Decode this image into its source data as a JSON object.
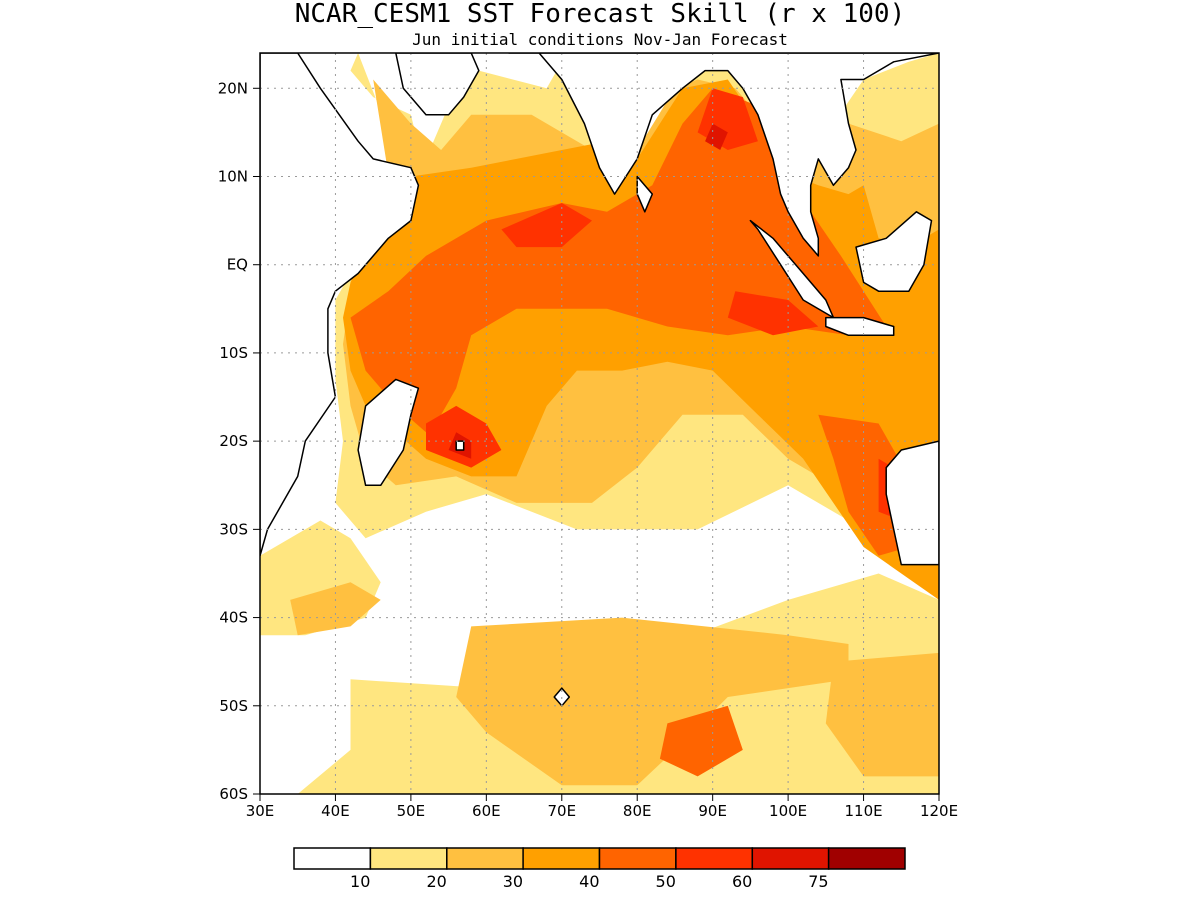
{
  "title": "NCAR_CESM1 SST Forecast Skill (r x 100)",
  "subtitle": "Jun initial conditions  Nov-Jan Forecast",
  "map": {
    "lon_range": [
      30,
      120
    ],
    "lat_range": [
      -60,
      24
    ],
    "x_ticks": [
      {
        "lon": 30,
        "label": "30E"
      },
      {
        "lon": 40,
        "label": "40E"
      },
      {
        "lon": 50,
        "label": "50E"
      },
      {
        "lon": 60,
        "label": "60E"
      },
      {
        "lon": 70,
        "label": "70E"
      },
      {
        "lon": 80,
        "label": "80E"
      },
      {
        "lon": 90,
        "label": "90E"
      },
      {
        "lon": 100,
        "label": "100E"
      },
      {
        "lon": 110,
        "label": "110E"
      },
      {
        "lon": 120,
        "label": "120E"
      }
    ],
    "y_ticks": [
      {
        "lat": 20,
        "label": "20N"
      },
      {
        "lat": 10,
        "label": "10N"
      },
      {
        "lat": 0,
        "label": "EQ"
      },
      {
        "lat": -10,
        "label": "10S"
      },
      {
        "lat": -20,
        "label": "20S"
      },
      {
        "lat": -30,
        "label": "30S"
      },
      {
        "lat": -40,
        "label": "40S"
      },
      {
        "lat": -50,
        "label": "50S"
      },
      {
        "lat": -60,
        "label": "60S"
      }
    ],
    "grid": true
  },
  "colorbar": {
    "colors": [
      "#ffffff",
      "#ffe680",
      "#ffc040",
      "#ffa000",
      "#ff6400",
      "#ff3200",
      "#e01400",
      "#a00000"
    ],
    "labels": [
      "10",
      "20",
      "30",
      "40",
      "50",
      "60",
      "75"
    ]
  },
  "regions": [
    {
      "level": 1,
      "pts": [
        [
          30,
          -33
        ],
        [
          38,
          -29
        ],
        [
          42,
          -31
        ],
        [
          46,
          -36
        ],
        [
          44,
          -40
        ],
        [
          36,
          -42
        ],
        [
          30,
          -42
        ]
      ]
    },
    {
      "level": 1,
      "pts": [
        [
          42,
          -47
        ],
        [
          60,
          -48
        ],
        [
          78,
          -45
        ],
        [
          100,
          -38
        ],
        [
          112,
          -35
        ],
        [
          120,
          -38
        ],
        [
          120,
          -60
        ],
        [
          35,
          -60
        ],
        [
          42,
          -55
        ]
      ]
    },
    {
      "level": 1,
      "pts": [
        [
          43,
          24
        ],
        [
          48,
          13
        ],
        [
          52,
          12
        ],
        [
          56,
          20
        ],
        [
          59,
          22
        ],
        [
          68,
          20
        ],
        [
          70,
          23
        ],
        [
          82,
          12
        ],
        [
          85,
          21
        ],
        [
          92,
          23
        ],
        [
          95,
          19
        ],
        [
          100,
          13
        ],
        [
          106,
          16
        ],
        [
          110,
          21
        ],
        [
          116,
          23
        ],
        [
          120,
          24
        ],
        [
          120,
          -33
        ],
        [
          108,
          -29
        ],
        [
          100,
          -25
        ],
        [
          88,
          -30
        ],
        [
          72,
          -30
        ],
        [
          60,
          -26
        ],
        [
          52,
          -28
        ],
        [
          44,
          -31
        ],
        [
          40,
          -27
        ],
        [
          41,
          -20
        ],
        [
          40,
          -13
        ],
        [
          40,
          -4
        ],
        [
          46,
          5
        ],
        [
          50,
          10
        ],
        [
          52,
          10
        ],
        [
          50,
          17
        ],
        [
          45,
          19
        ],
        [
          42,
          22
        ]
      ]
    },
    {
      "level": 2,
      "pts": [
        [
          34,
          -38
        ],
        [
          42,
          -36
        ],
        [
          46,
          -38
        ],
        [
          42,
          -41
        ],
        [
          35,
          -42
        ]
      ]
    },
    {
      "level": 2,
      "pts": [
        [
          58,
          -41
        ],
        [
          78,
          -40
        ],
        [
          100,
          -42
        ],
        [
          108,
          -43
        ],
        [
          108,
          -47
        ],
        [
          92,
          -49
        ],
        [
          85,
          -55
        ],
        [
          80,
          -59
        ],
        [
          70,
          -59
        ],
        [
          60,
          -53
        ],
        [
          56,
          -49
        ]
      ]
    },
    {
      "level": 2,
      "pts": [
        [
          106,
          -45
        ],
        [
          120,
          -44
        ],
        [
          120,
          -58
        ],
        [
          110,
          -58
        ],
        [
          105,
          -52
        ]
      ]
    },
    {
      "level": 2,
      "pts": [
        [
          45,
          21
        ],
        [
          50,
          16
        ],
        [
          54,
          13
        ],
        [
          58,
          17
        ],
        [
          66,
          17
        ],
        [
          74,
          13
        ],
        [
          80,
          13
        ],
        [
          85,
          20
        ],
        [
          88,
          21
        ],
        [
          93,
          20
        ],
        [
          97,
          16
        ],
        [
          100,
          12
        ],
        [
          106,
          12
        ],
        [
          108,
          16
        ],
        [
          115,
          14
        ],
        [
          120,
          16
        ],
        [
          120,
          -36
        ],
        [
          111,
          -31
        ],
        [
          107,
          -27
        ],
        [
          104,
          -24
        ],
        [
          100,
          -22
        ],
        [
          94,
          -17
        ],
        [
          86,
          -17
        ],
        [
          80,
          -23
        ],
        [
          74,
          -27
        ],
        [
          64,
          -27
        ],
        [
          56,
          -24
        ],
        [
          48,
          -25
        ],
        [
          44,
          -22
        ],
        [
          42,
          -16
        ],
        [
          41,
          -9
        ],
        [
          42,
          -3
        ],
        [
          45,
          1
        ],
        [
          48,
          5
        ]
      ]
    },
    {
      "level": 3,
      "pts": [
        [
          46,
          8
        ],
        [
          50,
          10
        ],
        [
          58,
          11
        ],
        [
          64,
          12
        ],
        [
          70,
          13
        ],
        [
          76,
          14
        ],
        [
          80,
          12
        ],
        [
          86,
          20
        ],
        [
          92,
          21
        ],
        [
          96,
          16
        ],
        [
          98,
          11
        ],
        [
          104,
          9
        ],
        [
          108,
          8
        ],
        [
          110,
          9
        ],
        [
          112,
          3
        ],
        [
          116,
          2
        ],
        [
          120,
          4
        ],
        [
          120,
          -38
        ],
        [
          110,
          -32
        ],
        [
          106,
          -27
        ],
        [
          102,
          -22
        ],
        [
          96,
          -17
        ],
        [
          90,
          -12
        ],
        [
          84,
          -11
        ],
        [
          78,
          -12
        ],
        [
          72,
          -12
        ],
        [
          68,
          -16
        ],
        [
          66,
          -20
        ],
        [
          64,
          -24
        ],
        [
          58,
          -24
        ],
        [
          52,
          -22
        ],
        [
          48,
          -19
        ],
        [
          44,
          -16
        ],
        [
          42,
          -12
        ],
        [
          41,
          -6
        ],
        [
          42,
          -2
        ],
        [
          45,
          4
        ]
      ]
    },
    {
      "level": 4,
      "pts": [
        [
          47,
          -3
        ],
        [
          52,
          1
        ],
        [
          60,
          5
        ],
        [
          70,
          7
        ],
        [
          76,
          6
        ],
        [
          82,
          9
        ],
        [
          86,
          16
        ],
        [
          90,
          20
        ],
        [
          96,
          18
        ],
        [
          100,
          14
        ],
        [
          103,
          6
        ],
        [
          107,
          1
        ],
        [
          113,
          -7
        ],
        [
          108,
          -8
        ],
        [
          100,
          -7
        ],
        [
          92,
          -8
        ],
        [
          84,
          -7
        ],
        [
          76,
          -5
        ],
        [
          70,
          -5
        ],
        [
          64,
          -5
        ],
        [
          58,
          -8
        ],
        [
          56,
          -14
        ],
        [
          54,
          -17
        ],
        [
          52,
          -19
        ],
        [
          48,
          -16
        ],
        [
          44,
          -12
        ],
        [
          42,
          -6
        ]
      ]
    },
    {
      "level": 4,
      "pts": [
        [
          104,
          -17
        ],
        [
          112,
          -18
        ],
        [
          116,
          -24
        ],
        [
          116,
          -32
        ],
        [
          112,
          -33
        ],
        [
          108,
          -28
        ],
        [
          106,
          -22
        ]
      ]
    },
    {
      "level": 4,
      "pts": [
        [
          84,
          -52
        ],
        [
          92,
          -50
        ],
        [
          94,
          -55
        ],
        [
          88,
          -58
        ],
        [
          83,
          -56
        ]
      ]
    },
    {
      "level": 5,
      "pts": [
        [
          56,
          -16
        ],
        [
          60,
          -18
        ],
        [
          62,
          -21
        ],
        [
          58,
          -23
        ],
        [
          52,
          -21
        ],
        [
          52,
          -18
        ]
      ]
    },
    {
      "level": 5,
      "pts": [
        [
          62,
          4
        ],
        [
          70,
          7
        ],
        [
          74,
          5
        ],
        [
          70,
          2
        ],
        [
          64,
          2
        ]
      ]
    },
    {
      "level": 5,
      "pts": [
        [
          90,
          20
        ],
        [
          94,
          19
        ],
        [
          96,
          14
        ],
        [
          92,
          13
        ],
        [
          88,
          15
        ]
      ]
    },
    {
      "level": 5,
      "pts": [
        [
          93,
          -3
        ],
        [
          100,
          -4
        ],
        [
          104,
          -7
        ],
        [
          98,
          -8
        ],
        [
          92,
          -6
        ]
      ]
    },
    {
      "level": 5,
      "pts": [
        [
          112,
          -22
        ],
        [
          116,
          -24
        ],
        [
          115,
          -29
        ],
        [
          112,
          -28
        ]
      ]
    },
    {
      "level": 6,
      "pts": [
        [
          56,
          -19
        ],
        [
          58,
          -20
        ],
        [
          58,
          -22
        ],
        [
          55,
          -21
        ]
      ]
    },
    {
      "level": 6,
      "pts": [
        [
          90,
          16
        ],
        [
          92,
          15
        ],
        [
          91,
          13
        ],
        [
          89,
          14
        ]
      ]
    }
  ],
  "land": [
    {
      "pts": [
        [
          30,
          -33
        ],
        [
          30,
          24
        ],
        [
          35,
          24
        ],
        [
          38,
          20
        ],
        [
          43,
          14
        ],
        [
          45,
          12
        ],
        [
          50,
          11
        ],
        [
          51,
          9
        ],
        [
          50,
          5
        ],
        [
          47,
          3
        ],
        [
          43,
          -1
        ],
        [
          40,
          -3
        ],
        [
          39,
          -5
        ],
        [
          39,
          -10
        ],
        [
          40,
          -15
        ],
        [
          36,
          -20
        ],
        [
          35,
          -24
        ],
        [
          33,
          -27
        ],
        [
          31,
          -30
        ]
      ]
    },
    {
      "pts": [
        [
          48,
          -13
        ],
        [
          51,
          -14
        ],
        [
          50,
          -17
        ],
        [
          49,
          -21
        ],
        [
          46,
          -25
        ],
        [
          44,
          -25
        ],
        [
          43,
          -21
        ],
        [
          44,
          -16
        ]
      ]
    },
    {
      "pts": [
        [
          48,
          24
        ],
        [
          49,
          20
        ],
        [
          52,
          17
        ],
        [
          55,
          17
        ],
        [
          57,
          19
        ],
        [
          59,
          22
        ],
        [
          58,
          24
        ]
      ]
    },
    {
      "pts": [
        [
          63,
          24
        ],
        [
          67,
          24
        ],
        [
          69,
          22
        ],
        [
          70,
          21
        ],
        [
          73,
          16
        ],
        [
          75,
          11
        ],
        [
          77,
          8
        ],
        [
          80,
          12
        ],
        [
          82,
          17
        ],
        [
          86,
          20
        ],
        [
          89,
          22
        ],
        [
          92,
          22
        ],
        [
          94,
          20
        ],
        [
          96,
          17
        ],
        [
          98,
          12
        ],
        [
          99,
          8
        ],
        [
          100,
          6
        ],
        [
          102,
          3
        ],
        [
          104,
          1
        ],
        [
          104,
          3
        ],
        [
          103,
          6
        ],
        [
          103,
          9
        ],
        [
          104,
          12
        ],
        [
          106,
          9
        ],
        [
          108,
          11
        ],
        [
          109,
          13
        ],
        [
          108,
          16
        ],
        [
          107,
          21
        ],
        [
          110,
          21
        ],
        [
          114,
          23
        ],
        [
          120,
          24
        ]
      ]
    },
    {
      "pts": [
        [
          80,
          10
        ],
        [
          82,
          8
        ],
        [
          81,
          6
        ],
        [
          80,
          8
        ]
      ]
    },
    {
      "pts": [
        [
          95,
          5
        ],
        [
          98,
          3
        ],
        [
          102,
          -1
        ],
        [
          105,
          -4
        ],
        [
          106,
          -6
        ],
        [
          102,
          -4
        ],
        [
          99,
          0
        ],
        [
          96,
          4
        ]
      ]
    },
    {
      "pts": [
        [
          105,
          -6
        ],
        [
          110,
          -6
        ],
        [
          114,
          -7
        ],
        [
          114,
          -8
        ],
        [
          108,
          -8
        ],
        [
          105,
          -7
        ]
      ]
    },
    {
      "pts": [
        [
          109,
          2
        ],
        [
          113,
          3
        ],
        [
          117,
          6
        ],
        [
          119,
          5
        ],
        [
          118,
          0
        ],
        [
          116,
          -3
        ],
        [
          112,
          -3
        ],
        [
          110,
          -2
        ]
      ]
    },
    {
      "pts": [
        [
          120,
          -20
        ],
        [
          115,
          -21
        ],
        [
          113,
          -23
        ],
        [
          113,
          -26
        ],
        [
          114,
          -30
        ],
        [
          115,
          -34
        ],
        [
          120,
          -34
        ]
      ]
    },
    {
      "pts": [
        [
          56,
          -20
        ],
        [
          57,
          -20
        ],
        [
          57,
          -21
        ],
        [
          56,
          -21
        ]
      ]
    },
    {
      "pts": [
        [
          69,
          -49
        ],
        [
          70,
          -48
        ],
        [
          71,
          -49
        ],
        [
          70,
          -50
        ]
      ]
    }
  ]
}
